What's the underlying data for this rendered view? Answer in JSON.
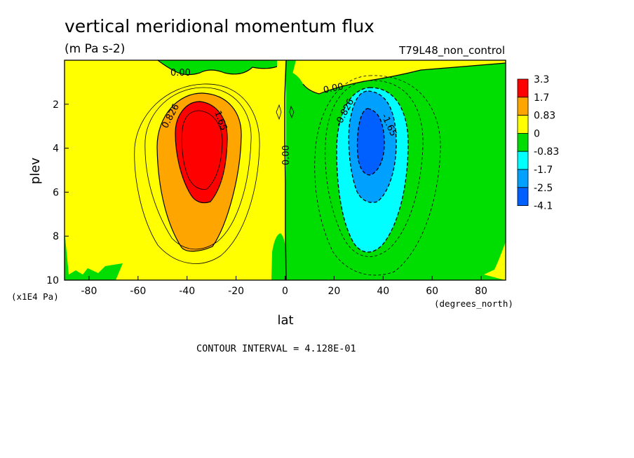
{
  "chart_data": {
    "type": "heatmap",
    "title": "vertical meridional momentum flux",
    "subtitle": "(m Pa s-2)",
    "run_label": "T79L48_non_control",
    "xlabel": "lat",
    "x_units": "(degrees_north)",
    "ylabel": "plev",
    "y_units": "(x1E4 Pa)",
    "xlim": [
      -90,
      90
    ],
    "ylim": [
      10,
      0
    ],
    "x_ticks": [
      -80,
      -60,
      -40,
      -20,
      0,
      20,
      40,
      60,
      80
    ],
    "y_ticks": [
      2,
      4,
      6,
      8,
      10
    ],
    "x_tick_labels": [
      "-80",
      "-60",
      "-40",
      "-20",
      "0",
      "20",
      "40",
      "60",
      "80"
    ],
    "y_tick_labels": [
      "2",
      "4",
      "6",
      "8",
      "10"
    ],
    "contour_interval_text": "CONTOUR INTERVAL = 4.128E-01",
    "contour_labels": [
      "0.00",
      "0.00",
      "0.00",
      "0.826",
      "1.65",
      "-0.826",
      "-1.65"
    ],
    "colorbar": {
      "labels": [
        "3.3",
        "1.7",
        "0.83",
        "0",
        "-0.83",
        "-1.7",
        "-2.5",
        "-4.1"
      ],
      "colors": [
        "#ff0000",
        "#ffa500",
        "#ffff00",
        "#00dd00",
        "#00ffff",
        "#00a0ff",
        "#0060ff"
      ]
    },
    "features": [
      {
        "sign": "positive",
        "center_lat": -34,
        "center_plev": 4,
        "max_approx": 3.3,
        "fill": "#ff0000"
      },
      {
        "sign": "negative",
        "center_lat": 33,
        "center_plev": 3.8,
        "min_approx": -4.1,
        "fill": "#0060ff"
      }
    ]
  }
}
